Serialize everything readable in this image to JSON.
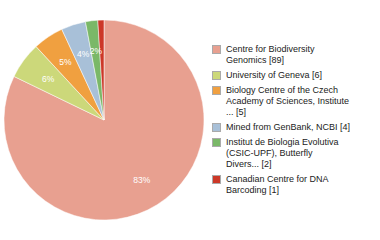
{
  "chart_data": {
    "type": "pie",
    "labels": [
      "Centre for Biodiversity\nGenomics [89]",
      "University of Geneva [6]",
      "Biology Centre of the Czech\nAcademy of Sciences, Institute\n... [5]",
      "Mined from GenBank, NCBI [4]",
      "Institut de Biologia Evolutiva\n(CSIC-UPF), Butterfly\nDivers... [2]",
      "Canadian Centre for DNA\nBarcoding [1]"
    ],
    "values": [
      83,
      6,
      5,
      4,
      2,
      1
    ],
    "value_labels": [
      "83%",
      "6%",
      "5%",
      "4%",
      "2%",
      null
    ],
    "colors": [
      "#e8a090",
      "#ccd87a",
      "#f0a040",
      "#a8c0d8",
      "#7ab868",
      "#cc3828"
    ],
    "data_labels": true,
    "legend": "right"
  }
}
